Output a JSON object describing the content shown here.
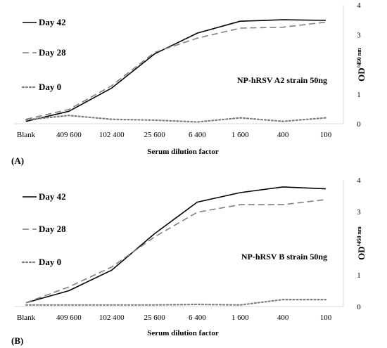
{
  "chart_data": [
    {
      "type": "line",
      "panel_label": "(A)",
      "annotation": "NP-hRSV A2 strain 50ng",
      "categories": [
        "Blank",
        "409 600",
        "102 400",
        "25 600",
        "6 400",
        "1 600",
        "400",
        "100"
      ],
      "xlabel": "Serum dilution factor",
      "ylabel": "OD",
      "ylabel_sub": "450 nm",
      "ylim": [
        0,
        4
      ],
      "yticks": [
        0,
        1,
        2,
        3,
        4
      ],
      "y_axis_side": "right",
      "grid": false,
      "legend_position": "top-left",
      "series": [
        {
          "name": "Day 42",
          "style": "solid",
          "color": "#000000",
          "values": [
            0.08,
            0.42,
            1.2,
            2.35,
            3.05,
            3.45,
            3.5,
            3.48
          ]
        },
        {
          "name": "Day 28",
          "style": "dashed",
          "color": "#7f7f7f",
          "values": [
            0.15,
            0.48,
            1.28,
            2.4,
            2.88,
            3.22,
            3.25,
            3.42
          ]
        },
        {
          "name": "Day 0",
          "style": "dotted",
          "color": "#7f7f7f",
          "values": [
            0.13,
            0.28,
            0.15,
            0.12,
            0.06,
            0.2,
            0.08,
            0.2
          ]
        }
      ]
    },
    {
      "type": "line",
      "panel_label": "(B)",
      "annotation": "NP-hRSV B strain 50ng",
      "categories": [
        "Blank",
        "409 600",
        "102 400",
        "25 600",
        "6 400",
        "1 600",
        "400",
        "100"
      ],
      "xlabel": "Serum dilution factor",
      "ylabel": "OD",
      "ylabel_sub": "450 nm",
      "ylim": [
        0,
        4
      ],
      "yticks": [
        0,
        1,
        2,
        3,
        4
      ],
      "y_axis_side": "right",
      "grid": false,
      "legend_position": "top-left",
      "series": [
        {
          "name": "Day 42",
          "style": "solid",
          "color": "#000000",
          "values": [
            0.12,
            0.5,
            1.15,
            2.3,
            3.3,
            3.6,
            3.78,
            3.72
          ]
        },
        {
          "name": "Day 28",
          "style": "dashed",
          "color": "#7f7f7f",
          "values": [
            0.12,
            0.62,
            1.25,
            2.2,
            2.98,
            3.22,
            3.22,
            3.38
          ]
        },
        {
          "name": "Day 0",
          "style": "dotted",
          "color": "#7f7f7f",
          "values": [
            0.05,
            0.05,
            0.05,
            0.05,
            0.07,
            0.05,
            0.22,
            0.22
          ]
        }
      ]
    }
  ]
}
